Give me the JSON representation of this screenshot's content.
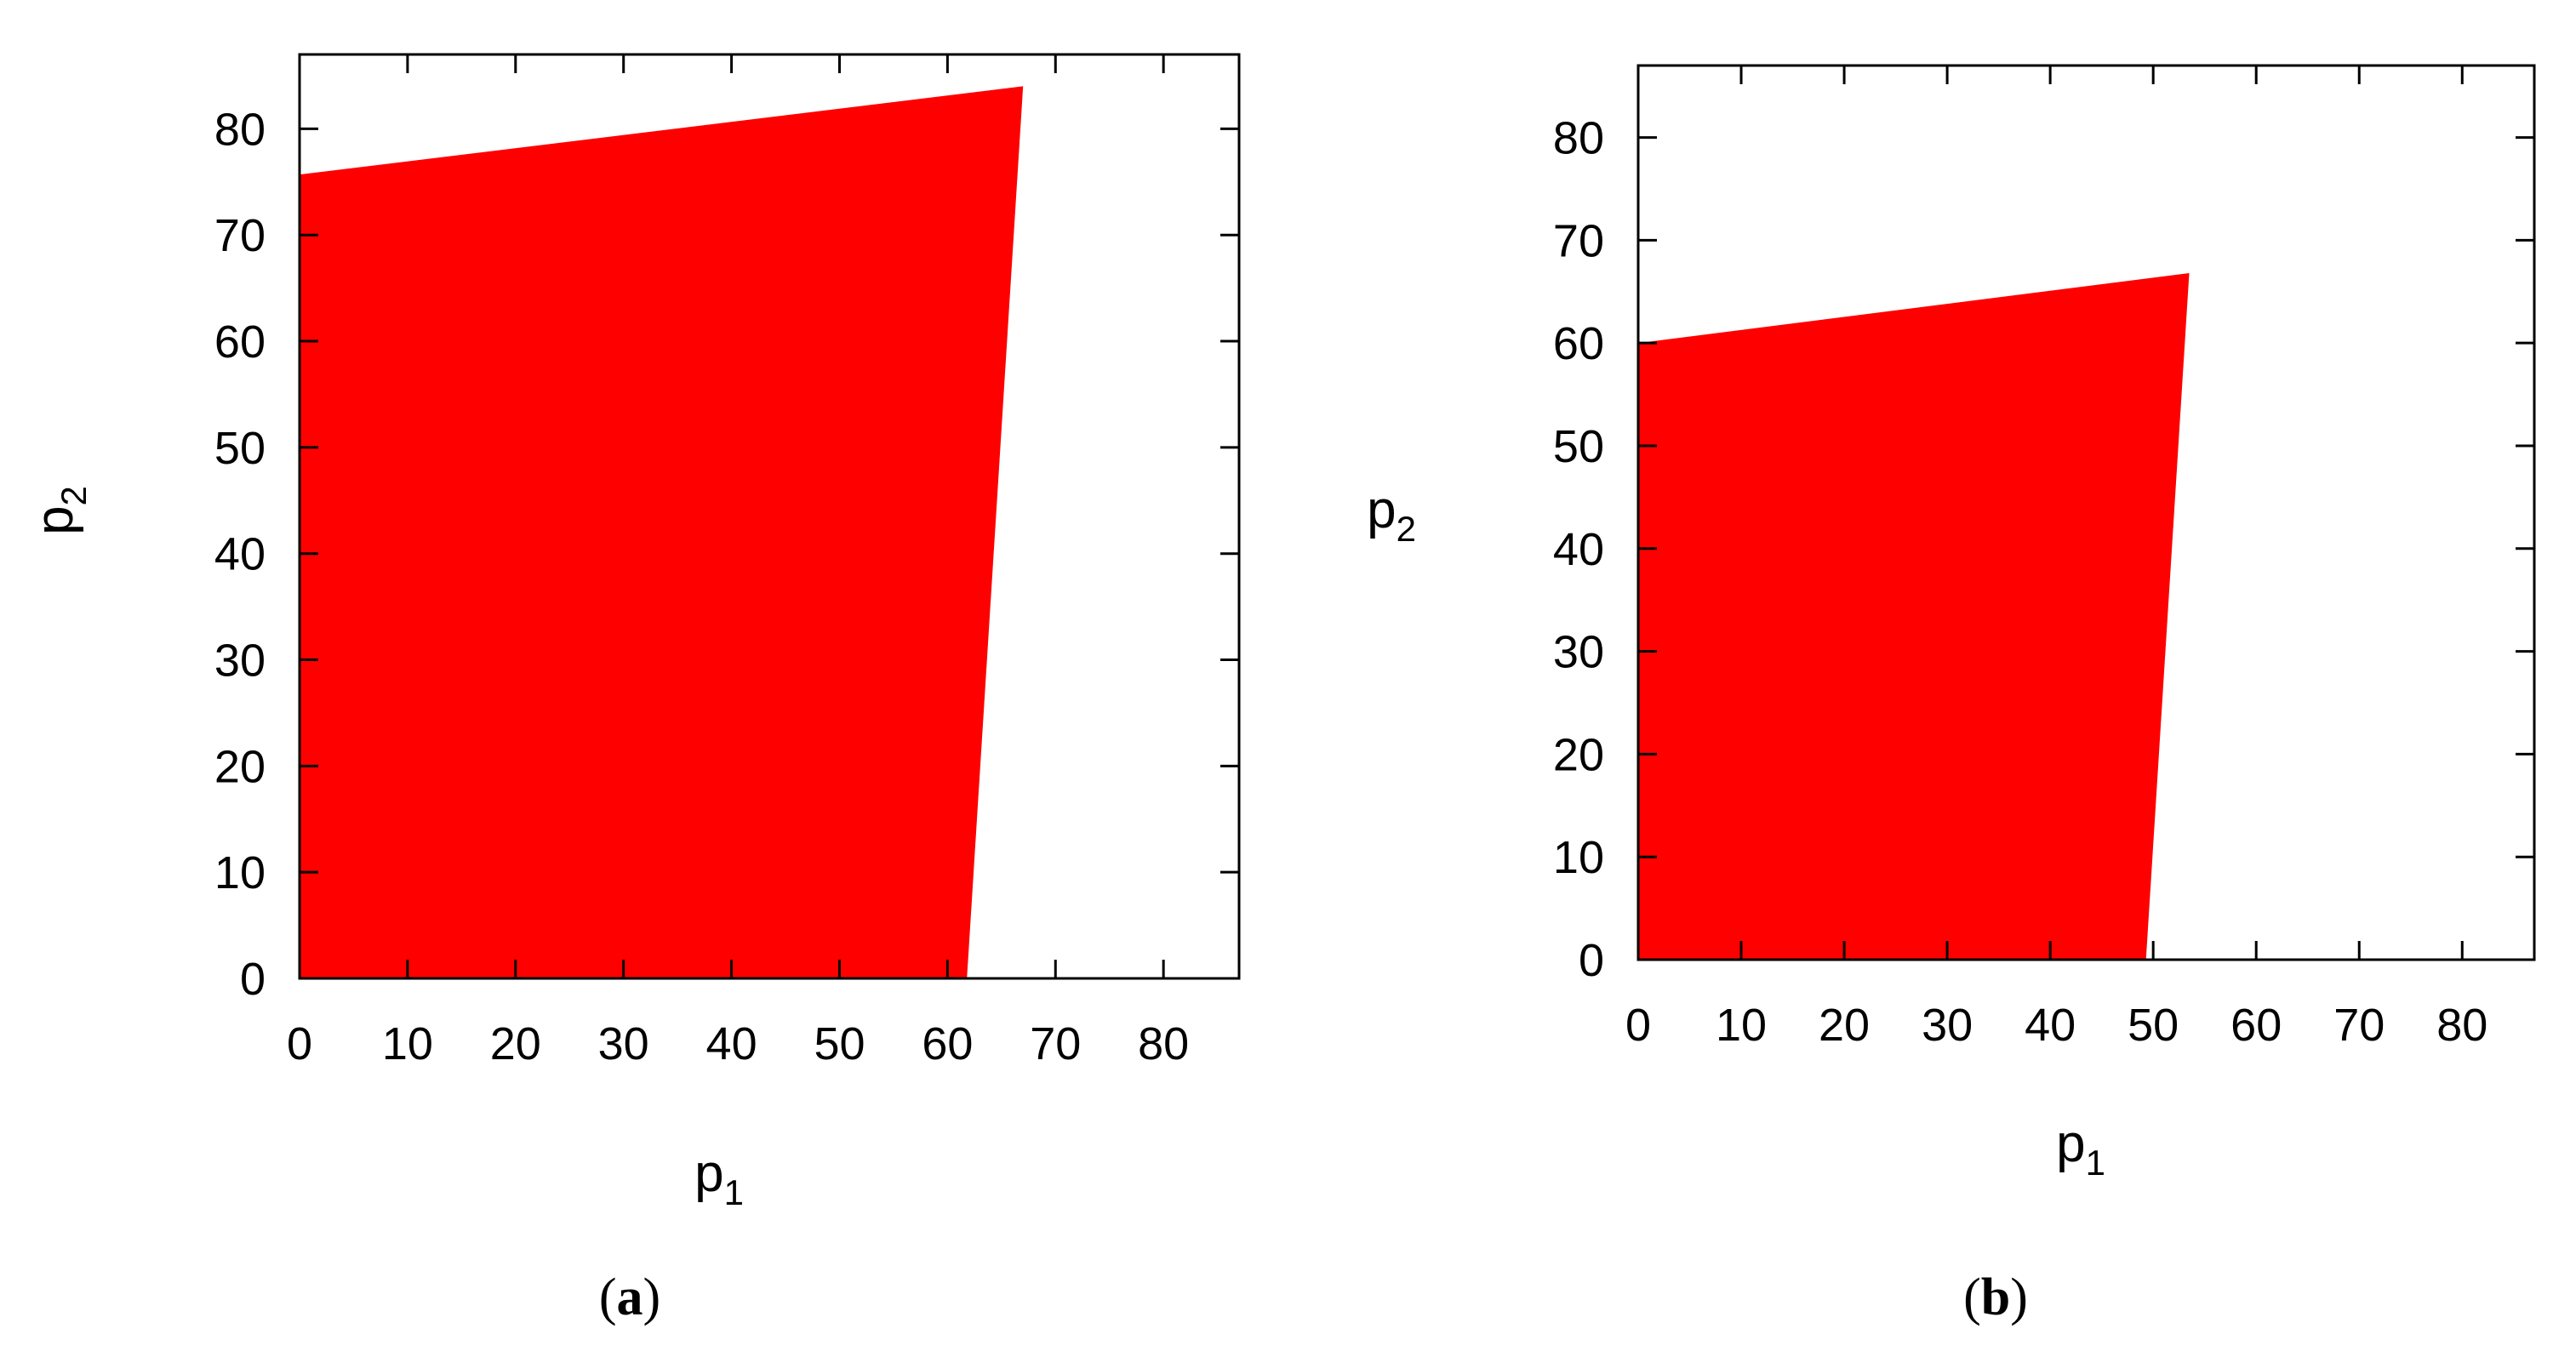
{
  "figure": {
    "panels": [
      {
        "label_open": "(",
        "label_letter": "a",
        "label_close": ")"
      },
      {
        "label_open": "(",
        "label_letter": "b",
        "label_close": ")"
      }
    ]
  },
  "chart_data": [
    {
      "type": "area",
      "xlabel_main": "p",
      "xlabel_sub": "1",
      "ylabel_main": "p",
      "ylabel_sub": "2",
      "xlim": [
        0,
        87
      ],
      "ylim": [
        0,
        87
      ],
      "xticks": [
        0,
        10,
        20,
        30,
        40,
        50,
        60,
        70,
        80
      ],
      "yticks": [
        0,
        10,
        20,
        30,
        40,
        50,
        60,
        70,
        80
      ],
      "grid": false,
      "region_color": "#ff0000",
      "region_vertices": [
        [
          0,
          0
        ],
        [
          0,
          75.7
        ],
        [
          67,
          84
        ],
        [
          61.8,
          0
        ]
      ]
    },
    {
      "type": "area",
      "xlabel_main": "p",
      "xlabel_sub": "1",
      "ylabel_main": "p",
      "ylabel_sub": "2",
      "xlim": [
        0,
        87
      ],
      "ylim": [
        0,
        87
      ],
      "xticks": [
        0,
        10,
        20,
        30,
        40,
        50,
        60,
        70,
        80
      ],
      "yticks": [
        0,
        10,
        20,
        30,
        40,
        50,
        60,
        70,
        80
      ],
      "grid": false,
      "region_color": "#ff0000",
      "region_vertices": [
        [
          0,
          0
        ],
        [
          0,
          60
        ],
        [
          53.5,
          66.8
        ],
        [
          49.3,
          0
        ]
      ]
    }
  ]
}
